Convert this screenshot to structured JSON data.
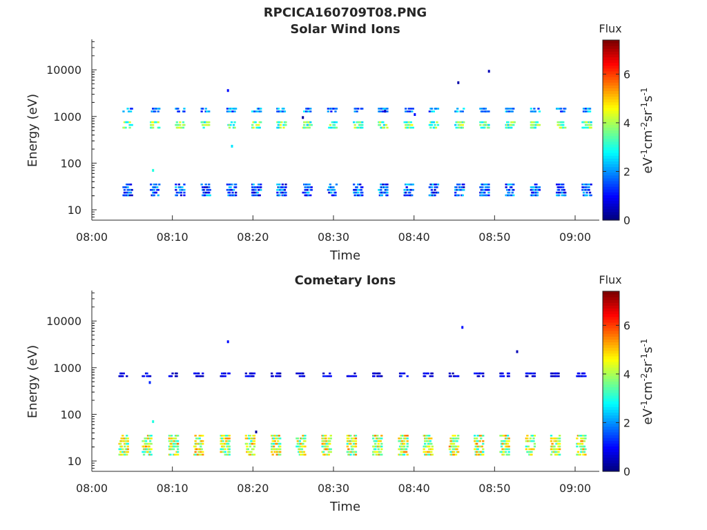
{
  "figure": {
    "supertitle": "RPCICA160709T08.PNG"
  },
  "colors": {
    "background": "#ffffff",
    "axes": "#262626",
    "colormap": "jet"
  },
  "chart_data": [
    {
      "type": "heatmap",
      "title": "Solar Wind Ions",
      "xlabel": "Time",
      "ylabel": "Energy (eV)",
      "x_tick_labels": [
        "08:00",
        "08:10",
        "08:20",
        "08:30",
        "08:40",
        "08:50",
        "09:00"
      ],
      "x_ticks_minutes": [
        0,
        10,
        20,
        30,
        40,
        50,
        60
      ],
      "xlim_minutes": [
        0,
        63
      ],
      "y_scale": "log",
      "ylim_eV": [
        6,
        45000
      ],
      "y_ticks": [
        10,
        100,
        1000,
        10000
      ],
      "y_tick_labels": [
        "10",
        "100",
        "1000",
        "10000"
      ],
      "grid": false,
      "colorbar": {
        "title": "Flux",
        "label": "eV-1cm-2sr-1s-1",
        "clim": [
          0,
          7.4
        ],
        "ticks": [
          0,
          2,
          4,
          6
        ],
        "tick_labels": [
          "0",
          "2",
          "4",
          "6"
        ]
      },
      "scan_start_minutes": [
        3.8,
        7.2,
        10.3,
        13.5,
        16.7,
        19.8,
        22.9,
        26.1,
        29.2,
        32.4,
        35.5,
        38.7,
        41.8,
        45.0,
        48.1,
        51.3,
        54.4,
        57.6,
        60.8
      ],
      "bands": [
        {
          "name_visible": false,
          "energy_eV": [
            18,
            38
          ],
          "flux_range": [
            0.4,
            2.6
          ]
        },
        {
          "name_visible": false,
          "energy_eV": [
            500,
            760
          ],
          "flux_range": [
            2.4,
            4.6
          ]
        },
        {
          "name_visible": false,
          "energy_eV": [
            1250,
            1500
          ],
          "flux_range": [
            1.0,
            2.8
          ]
        }
      ],
      "isolated_points": [
        {
          "t_min": 16.9,
          "energy_eV": 3600,
          "flux": 1.0
        },
        {
          "t_min": 17.4,
          "energy_eV": 230,
          "flux": 2.6
        },
        {
          "t_min": 7.6,
          "energy_eV": 70,
          "flux": 3.0
        },
        {
          "t_min": 26.2,
          "energy_eV": 950,
          "flux": 0.2
        },
        {
          "t_min": 36.4,
          "energy_eV": 1300,
          "flux": 0.5
        },
        {
          "t_min": 40.1,
          "energy_eV": 1100,
          "flux": 1.0
        },
        {
          "t_min": 45.5,
          "energy_eV": 5300,
          "flux": 0.3
        },
        {
          "t_min": 49.3,
          "energy_eV": 9300,
          "flux": 0.4
        }
      ]
    },
    {
      "type": "heatmap",
      "title": "Cometary Ions",
      "xlabel": "Time",
      "ylabel": "Energy (eV)",
      "x_tick_labels": [
        "08:00",
        "08:10",
        "08:20",
        "08:30",
        "08:40",
        "08:50",
        "09:00"
      ],
      "x_ticks_minutes": [
        0,
        10,
        20,
        30,
        40,
        50,
        60
      ],
      "xlim_minutes": [
        0,
        63
      ],
      "y_scale": "log",
      "ylim_eV": [
        6,
        45000
      ],
      "y_ticks": [
        10,
        100,
        1000,
        10000
      ],
      "y_tick_labels": [
        "10",
        "100",
        "1000",
        "10000"
      ],
      "grid": false,
      "colorbar": {
        "title": "Flux",
        "label": "eV-1cm-2sr-1s-1",
        "clim": [
          0,
          7.4
        ],
        "ticks": [
          0,
          2,
          4,
          6
        ],
        "tick_labels": [
          "0",
          "2",
          "4",
          "6"
        ]
      },
      "scan_start_minutes": [
        3.3,
        6.2,
        9.5,
        12.6,
        15.9,
        19.0,
        22.2,
        25.3,
        28.5,
        31.6,
        34.8,
        38.0,
        41.1,
        44.3,
        47.4,
        50.6,
        53.8,
        56.9,
        60.1
      ],
      "bands": [
        {
          "name_visible": false,
          "energy_eV": [
            13,
            38
          ],
          "flux_range": [
            2.8,
            5.6
          ]
        },
        {
          "name_visible": false,
          "energy_eV": [
            580,
            760
          ],
          "flux_range": [
            0.3,
            1.2
          ]
        }
      ],
      "isolated_points": [
        {
          "t_min": 16.9,
          "energy_eV": 3600,
          "flux": 1.0
        },
        {
          "t_min": 7.6,
          "energy_eV": 70,
          "flux": 3.0
        },
        {
          "t_min": 7.2,
          "energy_eV": 480,
          "flux": 1.2
        },
        {
          "t_min": 46.0,
          "energy_eV": 7300,
          "flux": 1.0
        },
        {
          "t_min": 52.8,
          "energy_eV": 2200,
          "flux": 0.4
        },
        {
          "t_min": 20.4,
          "energy_eV": 42,
          "flux": 0.2
        }
      ]
    }
  ]
}
